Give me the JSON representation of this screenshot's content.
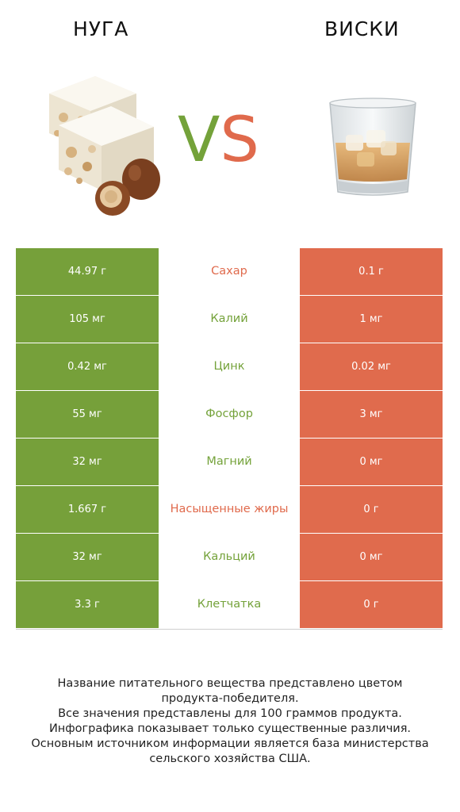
{
  "header": {
    "left_title": "НУГА",
    "right_title": "ВИСКИ",
    "vs_v": "V",
    "vs_s": "S"
  },
  "colors": {
    "left": "#76a03a",
    "right": "#e06b4d"
  },
  "images": {
    "left": "nougat-with-hazelnuts",
    "right": "whisky-glass-with-ice"
  },
  "rows": [
    {
      "left": "44.97 г",
      "label": "Сахар",
      "right": "0.1 г",
      "winner": "right"
    },
    {
      "left": "105 мг",
      "label": "Калий",
      "right": "1 мг",
      "winner": "left"
    },
    {
      "left": "0.42 мг",
      "label": "Цинк",
      "right": "0.02 мг",
      "winner": "left"
    },
    {
      "left": "55 мг",
      "label": "Фосфор",
      "right": "3 мг",
      "winner": "left"
    },
    {
      "left": "32 мг",
      "label": "Магний",
      "right": "0 мг",
      "winner": "left"
    },
    {
      "left": "1.667 г",
      "label": "Насыщенные жиры",
      "right": "0 г",
      "winner": "right"
    },
    {
      "left": "32 мг",
      "label": "Кальций",
      "right": "0 мг",
      "winner": "left"
    },
    {
      "left": "3.3 г",
      "label": "Клетчатка",
      "right": "0 г",
      "winner": "left"
    }
  ],
  "footer": {
    "line1": "Название питательного вещества представлено цветом",
    "line2": "продукта-победителя.",
    "line3": "Все значения представлены для 100 граммов продукта.",
    "line4": "Инфографика показывает только существенные различия.",
    "line5": "Основным источником информации является база министерства",
    "line6": "сельского хозяйства США."
  }
}
